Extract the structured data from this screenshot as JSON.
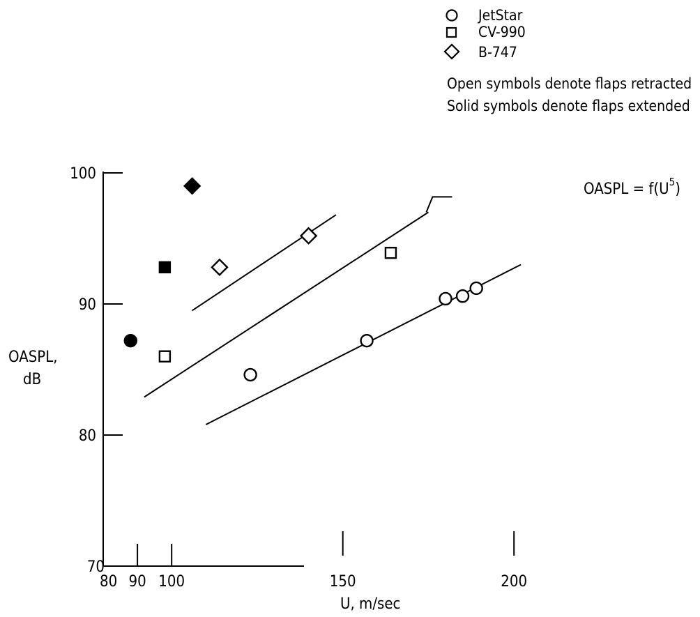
{
  "chart_data": {
    "type": "scatter",
    "xlabel": "U, m/sec",
    "ylabel_lines": [
      "OASPL,",
      "dB"
    ],
    "x_ticks": [
      80,
      90,
      100,
      150,
      200
    ],
    "y_ticks": [
      70,
      80,
      90,
      100
    ],
    "xlim": [
      80,
      200
    ],
    "ylim": [
      70,
      100
    ],
    "legend": {
      "entries": [
        {
          "symbol": "circle",
          "label": "JetStar"
        },
        {
          "symbol": "square",
          "label": "CV-990"
        },
        {
          "symbol": "diamond",
          "label": "B-747"
        }
      ],
      "notes": [
        "Open symbols denote flaps retracted",
        "Solid symbols denote flaps extended"
      ]
    },
    "series": [
      {
        "name": "JetStar",
        "symbol": "circle",
        "filled": false,
        "points": [
          [
            123,
            84.6
          ],
          [
            157,
            87.2
          ],
          [
            180,
            90.4
          ],
          [
            185,
            90.6
          ],
          [
            189,
            91.2
          ]
        ]
      },
      {
        "name": "JetStar",
        "symbol": "circle",
        "filled": true,
        "points": [
          [
            88,
            87.2
          ]
        ]
      },
      {
        "name": "CV-990",
        "symbol": "square",
        "filled": false,
        "points": [
          [
            98,
            86
          ],
          [
            164,
            93.9
          ]
        ]
      },
      {
        "name": "CV-990",
        "symbol": "square",
        "filled": true,
        "points": [
          [
            98,
            92.8
          ]
        ]
      },
      {
        "name": "B-747",
        "symbol": "diamond",
        "filled": false,
        "points": [
          [
            114,
            92.8
          ],
          [
            140,
            95.2
          ]
        ]
      },
      {
        "name": "B-747",
        "symbol": "diamond",
        "filled": true,
        "points": [
          [
            106,
            99
          ]
        ]
      }
    ],
    "fit_lines": [
      {
        "x": [
          106,
          148
        ],
        "y": [
          89.5,
          96.8
        ]
      },
      {
        "x": [
          92,
          175
        ],
        "y": [
          82.9,
          97
        ]
      },
      {
        "x": [
          110,
          202
        ],
        "y": [
          80.8,
          93
        ]
      }
    ],
    "annotation": {
      "text": "OASPL = f(U",
      "superscript": "5",
      "suffix": ")",
      "points_to": [
        175,
        97
      ]
    }
  }
}
